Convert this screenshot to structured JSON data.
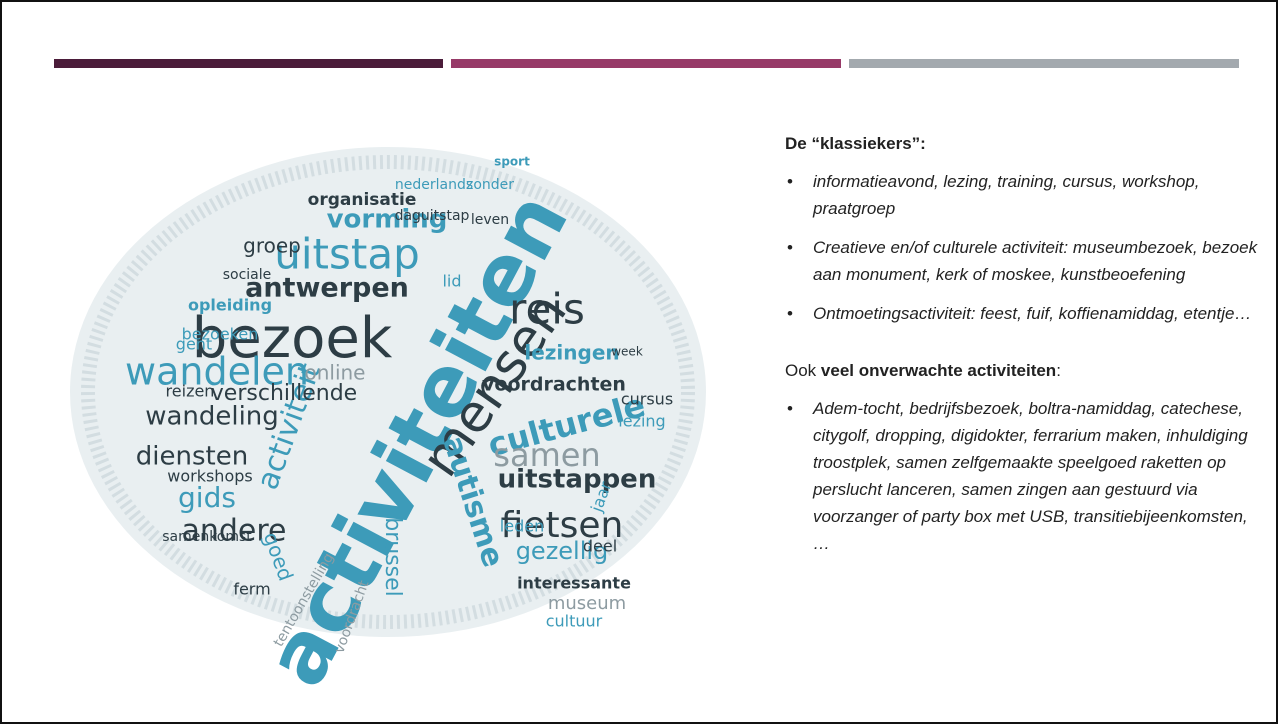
{
  "slide": {
    "wordcloud": [
      "activiteiten",
      "bezoek",
      "mensen",
      "uitstap",
      "reis",
      "wandelen",
      "culturele",
      "fietsen",
      "antwerpen",
      "vorming",
      "activiteit",
      "wandeling",
      "diensten",
      "andere",
      "gids",
      "samen",
      "verschillende",
      "uitstappen",
      "autisme",
      "lezingen",
      "voordrachten",
      "gezellig",
      "brussel",
      "organisatie",
      "groep",
      "online",
      "opleiding",
      "bezoeken",
      "workshops",
      "lezing",
      "cursus",
      "museum",
      "interessante",
      "cultuur",
      "nederlands",
      "zonder",
      "daguitstap",
      "leven",
      "sociale",
      "gent",
      "reizen",
      "goed",
      "ferm",
      "tentoonstelling",
      "leden",
      "deel",
      "jaar",
      "lid",
      "voordracht",
      "sport",
      "week",
      "samenkomst"
    ],
    "section1": {
      "heading": "De “klassiekers”:",
      "bullets": [
        "informatieavond, lezing, training, cursus, workshop, praatgroep",
        "Creatieve en/of culturele activiteit: museumbezoek, bezoek aan monument, kerk of moskee, kunstbeoefening",
        "Ontmoetingsactiviteit: feest, fuif, koffienamiddag, etentje…"
      ]
    },
    "section2": {
      "heading_prefix": "Ook",
      "heading_emphasis": "veel onverwachte activiteiten",
      "heading_suffix": ":",
      "bullets": [
        "Adem-tocht, bedrijfsbezoek, boltra-namiddag, catechese, citygolf, dropping, digidokter, ferrarium maken, inhuldiging troostplek, samen zelfgemaakte speelgoed raketten op perslucht lanceren, samen zingen aan gestuurd via voorzanger of party box met USB, transitiebijeenkomsten, …"
      ]
    }
  }
}
